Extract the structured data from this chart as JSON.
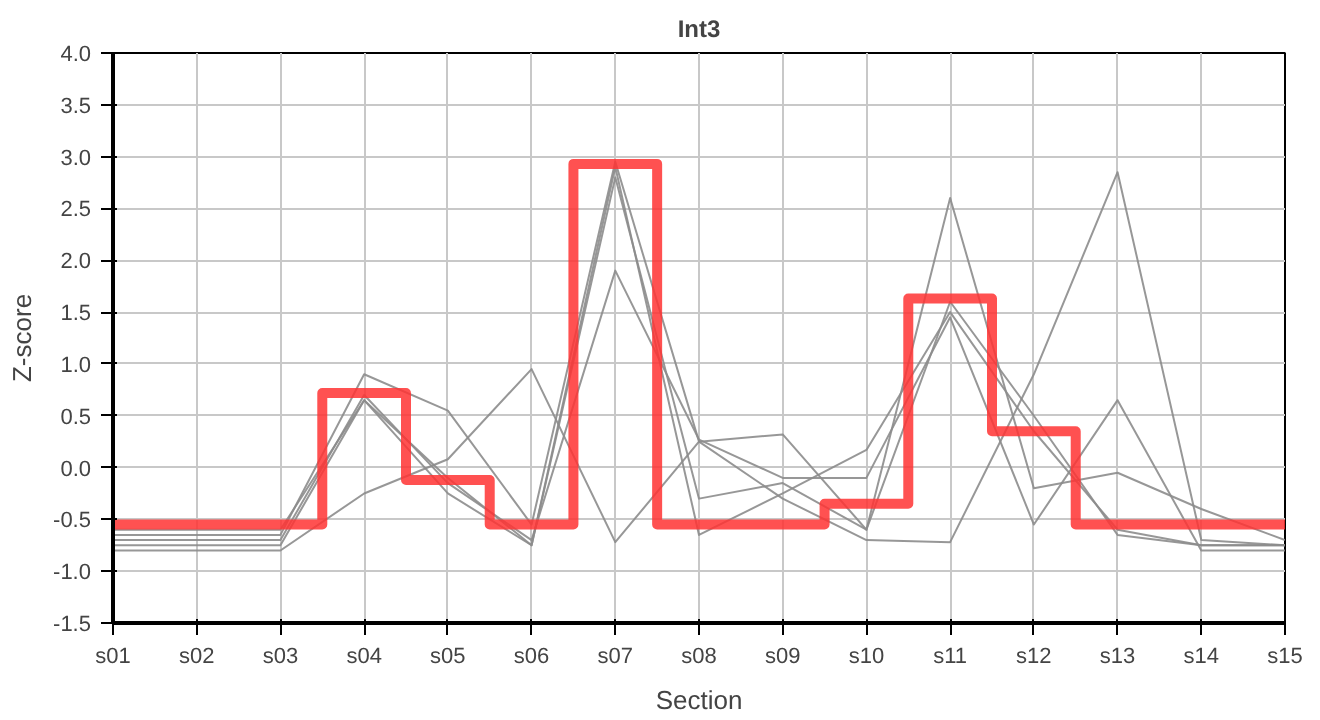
{
  "chart_data": {
    "type": "line",
    "title": "Int3",
    "xlabel": "Section",
    "ylabel": "Z-score",
    "categories": [
      "s01",
      "s02",
      "s03",
      "s04",
      "s05",
      "s06",
      "s07",
      "s08",
      "s09",
      "s10",
      "s11",
      "s12",
      "s13",
      "s14",
      "s15"
    ],
    "series": [
      {
        "color": "#8c8c8c",
        "values": [
          -0.65,
          -0.65,
          -0.65,
          0.9,
          0.55,
          -0.55,
          2.95,
          0.25,
          0.32,
          -0.6,
          2.6,
          -0.2,
          -0.05,
          -0.4,
          -0.7
        ]
      },
      {
        "color": "#8c8c8c",
        "values": [
          -0.8,
          -0.8,
          -0.8,
          -0.25,
          0.08,
          0.95,
          -0.72,
          0.25,
          -0.3,
          -0.7,
          -0.72,
          0.9,
          2.85,
          -0.7,
          -0.75
        ]
      },
      {
        "color": "#8c8c8c",
        "values": [
          -0.75,
          -0.75,
          -0.75,
          0.65,
          -0.25,
          -0.75,
          2.9,
          -0.65,
          -0.25,
          0.17,
          1.5,
          0.35,
          -0.6,
          -0.75,
          -0.75
        ]
      },
      {
        "color": "#8c8c8c",
        "values": [
          -0.7,
          -0.7,
          -0.7,
          0.7,
          -0.15,
          -0.7,
          1.9,
          0.27,
          -0.1,
          -0.1,
          1.45,
          -0.55,
          0.65,
          -0.8,
          -0.8
        ]
      },
      {
        "color": "#8c8c8c",
        "values": [
          -0.6,
          -0.6,
          -0.6,
          0.65,
          -0.1,
          -0.75,
          2.8,
          -0.3,
          -0.15,
          -0.6,
          1.6,
          0.5,
          -0.65,
          -0.75,
          -0.75
        ]
      },
      {
        "type": "step",
        "color": "#ff3333",
        "values": [
          -0.55,
          -0.55,
          -0.55,
          0.72,
          -0.12,
          -0.55,
          2.93,
          -0.55,
          -0.55,
          -0.35,
          1.63,
          0.35,
          -0.55,
          -0.55,
          -0.55
        ]
      }
    ],
    "ylim": [
      -1.5,
      4
    ],
    "yticks": [
      -1.5,
      {
        "value": -1,
        "label": "-1.0"
      },
      -0.5,
      {
        "value": 0,
        "label": "0.0"
      },
      0.5,
      {
        "value": 1,
        "label": "1.0"
      },
      1.5,
      {
        "value": 2,
        "label": "2.0"
      },
      2.5,
      {
        "value": 3,
        "label": "3.0"
      },
      3.5,
      {
        "value": 4,
        "label": "4.0"
      }
    ],
    "grid": true,
    "marker": "none",
    "line_style": "solid"
  }
}
